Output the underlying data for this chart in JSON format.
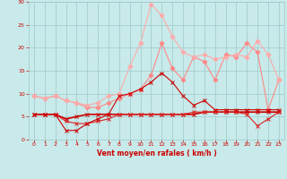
{
  "xlabel": "Vent moyen/en rafales ( km/h )",
  "x": [
    0,
    1,
    2,
    3,
    4,
    5,
    6,
    7,
    8,
    9,
    10,
    11,
    12,
    13,
    14,
    15,
    16,
    17,
    18,
    19,
    20,
    21,
    22,
    23
  ],
  "series": [
    {
      "color": "#cc0000",
      "linewidth": 1.2,
      "marker": "x",
      "markersize": 2.5,
      "zorder": 3,
      "y": [
        5.5,
        5.5,
        5.5,
        4.5,
        5.0,
        5.5,
        5.5,
        5.5,
        5.5,
        5.5,
        5.5,
        5.5,
        5.5,
        5.5,
        5.5,
        5.5,
        6.0,
        6.0,
        6.0,
        6.0,
        6.0,
        6.0,
        6.0,
        6.0
      ]
    },
    {
      "color": "#dd2222",
      "linewidth": 0.8,
      "marker": "x",
      "markersize": 2.5,
      "zorder": 3,
      "y": [
        5.5,
        5.5,
        5.5,
        4.0,
        3.5,
        3.5,
        4.0,
        4.5,
        5.5,
        5.5,
        5.5,
        5.5,
        5.5,
        5.5,
        5.5,
        6.0,
        6.0,
        6.0,
        6.0,
        6.0,
        5.5,
        3.0,
        4.5,
        6.0
      ]
    },
    {
      "color": "#cc0000",
      "linewidth": 0.8,
      "marker": "x",
      "markersize": 2.5,
      "zorder": 3,
      "y": [
        5.5,
        5.5,
        5.5,
        2.0,
        2.0,
        3.5,
        4.5,
        5.5,
        9.5,
        10.0,
        11.0,
        12.5,
        14.5,
        12.5,
        9.5,
        7.5,
        8.5,
        6.5,
        6.5,
        6.5,
        6.5,
        6.5,
        6.5,
        6.5
      ]
    },
    {
      "color": "#ff8888",
      "linewidth": 0.8,
      "marker": "D",
      "markersize": 2.5,
      "zorder": 2,
      "y": [
        9.5,
        9.0,
        9.5,
        8.5,
        8.0,
        7.0,
        7.0,
        8.0,
        9.0,
        10.0,
        11.0,
        14.0,
        21.0,
        15.5,
        13.0,
        18.0,
        17.0,
        13.0,
        18.5,
        18.0,
        21.0,
        19.0,
        6.5,
        13.0
      ]
    },
    {
      "color": "#ffaaaa",
      "linewidth": 0.8,
      "marker": "D",
      "markersize": 2.5,
      "zorder": 2,
      "y": [
        9.5,
        9.0,
        9.5,
        8.5,
        8.0,
        7.5,
        8.0,
        9.5,
        10.0,
        16.0,
        21.0,
        29.5,
        27.0,
        22.5,
        19.0,
        18.0,
        18.5,
        17.5,
        18.0,
        18.5,
        18.0,
        21.5,
        18.5,
        13.0
      ]
    }
  ],
  "ylim": [
    0,
    30
  ],
  "yticks": [
    0,
    5,
    10,
    15,
    20,
    25,
    30
  ],
  "xlim": [
    -0.5,
    23.5
  ],
  "bg_color": "#c8eaea",
  "grid_color": "#9ec8c8",
  "tick_color": "#cc0000",
  "label_color": "#cc0000",
  "xlabel_fontsize": 5.5,
  "tick_fontsize": 4.5
}
